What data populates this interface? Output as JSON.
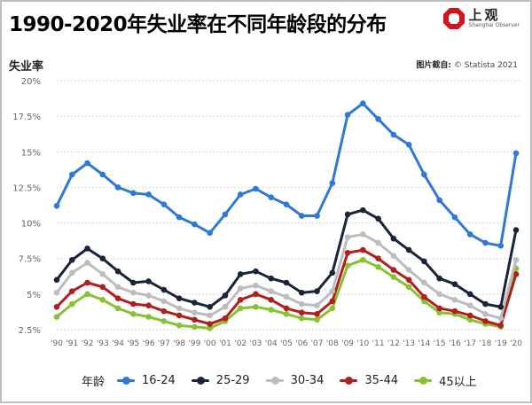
{
  "header": {
    "title": "1990-2020年失业率在不同年龄段的分布",
    "logo_cn": "上观",
    "logo_en": "Shanghai Observer",
    "source_prefix": "图片截自:",
    "source_text": "© Statista 2021"
  },
  "colors": {
    "s16_24": "#2f78d6",
    "s25_29": "#1a2438",
    "s30_34": "#bdbdbd",
    "s35_44": "#b01e1e",
    "s45": "#86c232",
    "grid": "#d9d9d9",
    "logo": "#d0161b"
  },
  "chart_data": {
    "type": "line",
    "ylabel": "失业率",
    "xlabel": "",
    "ylim": [
      2.5,
      20
    ],
    "yticks": [
      "2.5%",
      "5%",
      "7.5%",
      "10%",
      "12.5%",
      "15%",
      "17.5%",
      "20%"
    ],
    "ytick_values": [
      2.5,
      5,
      7.5,
      10,
      12.5,
      15,
      17.5,
      20
    ],
    "grid": "horizontal",
    "legend_title": "年龄",
    "legend_position": "bottom",
    "categories": [
      "'90",
      "'91",
      "'92",
      "'93",
      "'94",
      "'95",
      "'96",
      "'97",
      "'98",
      "'99",
      "'00",
      "'01",
      "'02",
      "'03",
      "'04",
      "'05",
      "'06",
      "'07",
      "'08",
      "'09",
      "'10",
      "'11",
      "'12",
      "'13",
      "'14",
      "'15",
      "'16",
      "'17",
      "'18",
      "'19",
      "'20"
    ],
    "series": [
      {
        "name": "16-24",
        "values": [
          11.2,
          13.4,
          14.2,
          13.4,
          12.5,
          12.1,
          12.0,
          11.3,
          10.4,
          9.9,
          9.3,
          10.6,
          12.0,
          12.4,
          11.8,
          11.3,
          10.5,
          10.5,
          12.8,
          17.6,
          18.4,
          17.3,
          16.2,
          15.5,
          13.4,
          11.6,
          10.4,
          9.2,
          8.6,
          8.4,
          14.9
        ]
      },
      {
        "name": "25-29",
        "values": [
          6.0,
          7.4,
          8.2,
          7.5,
          6.6,
          5.8,
          5.9,
          5.3,
          4.7,
          4.4,
          4.1,
          4.9,
          6.4,
          6.6,
          6.1,
          5.8,
          5.1,
          5.2,
          6.5,
          10.6,
          10.9,
          10.3,
          8.9,
          8.1,
          7.3,
          6.1,
          5.7,
          5.0,
          4.3,
          4.1,
          9.5
        ]
      },
      {
        "name": "30-34",
        "values": [
          5.1,
          6.5,
          7.2,
          6.4,
          5.5,
          5.1,
          4.9,
          4.5,
          4.0,
          3.7,
          3.5,
          4.1,
          5.4,
          5.6,
          5.2,
          4.8,
          4.3,
          4.2,
          5.2,
          9.0,
          9.2,
          8.6,
          7.7,
          6.7,
          5.8,
          5.0,
          4.6,
          4.2,
          3.6,
          3.3,
          7.4
        ]
      },
      {
        "name": "35-44",
        "values": [
          4.1,
          5.2,
          5.8,
          5.5,
          4.7,
          4.3,
          4.2,
          3.8,
          3.5,
          3.2,
          2.9,
          3.3,
          4.6,
          5.0,
          4.6,
          4.0,
          3.7,
          3.6,
          4.5,
          7.9,
          8.1,
          7.5,
          6.7,
          6.0,
          4.8,
          4.0,
          3.8,
          3.5,
          3.1,
          2.8,
          6.4
        ]
      },
      {
        "name": "45以上",
        "values": [
          3.4,
          4.3,
          5.0,
          4.6,
          4.0,
          3.6,
          3.4,
          3.1,
          2.8,
          2.7,
          2.6,
          3.1,
          4.0,
          4.1,
          3.9,
          3.6,
          3.3,
          3.2,
          4.0,
          7.0,
          7.4,
          6.9,
          6.2,
          5.5,
          4.5,
          3.7,
          3.6,
          3.2,
          2.9,
          2.7,
          6.8
        ]
      }
    ]
  }
}
